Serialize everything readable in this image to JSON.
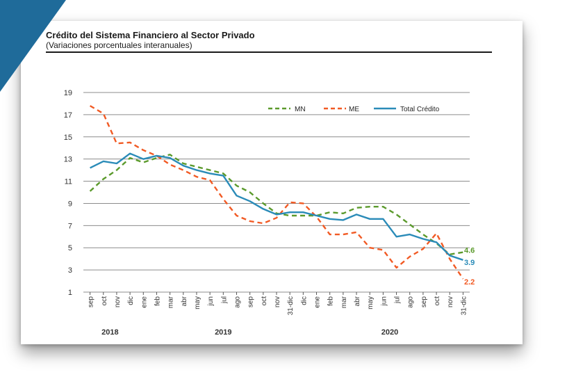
{
  "chart_data": {
    "type": "line",
    "title": "Crédito del Sistema Financiero al Sector Privado",
    "subtitle": "(Variaciones porcentuales interanuales)",
    "xlabel": "",
    "ylabel": "",
    "ylim": [
      1,
      19
    ],
    "yticks": [
      1,
      3,
      5,
      7,
      9,
      11,
      13,
      15,
      17,
      19
    ],
    "grid": true,
    "legend": "top-right",
    "categories": [
      "sep",
      "oct",
      "nov",
      "dic",
      "ene",
      "feb",
      "mar",
      "abr",
      "may",
      "jun",
      "jul",
      "ago",
      "sep",
      "oct",
      "nov",
      "31-dic",
      "dic",
      "ene",
      "feb",
      "mar",
      "abr",
      "may",
      "jun",
      "jul",
      "ago",
      "sep",
      "oct",
      "nov",
      "31-dic"
    ],
    "years": [
      {
        "label": "2018",
        "from": 0,
        "to": 3
      },
      {
        "label": "2019",
        "from": 4,
        "to": 16
      },
      {
        "label": "2020",
        "from": 17,
        "to": 28
      }
    ],
    "series": [
      {
        "name": "MN",
        "color": "#5b9a2c",
        "dash": "7,5",
        "values": [
          10.1,
          11.2,
          12.0,
          13.1,
          12.7,
          13.1,
          13.4,
          12.6,
          12.3,
          12.0,
          11.7,
          10.6,
          10.0,
          9.0,
          8.1,
          7.9,
          7.9,
          7.9,
          8.2,
          8.1,
          8.6,
          8.7,
          8.7,
          8.0,
          7.1,
          6.2,
          5.4,
          4.4,
          4.6
        ],
        "end_label": "4.6"
      },
      {
        "name": "ME",
        "color": "#f15a24",
        "dash": "7,5",
        "values": [
          17.8,
          17.1,
          14.4,
          14.5,
          13.8,
          13.3,
          12.5,
          12.0,
          11.4,
          11.1,
          9.4,
          7.9,
          7.4,
          7.2,
          7.7,
          9.1,
          9.0,
          7.8,
          6.2,
          6.2,
          6.4,
          5.0,
          4.8,
          3.2,
          4.2,
          4.9,
          6.3,
          4.0,
          2.2
        ],
        "end_label": "2.2"
      },
      {
        "name": "Total Crédito",
        "color": "#2a8bb8",
        "dash": "",
        "values": [
          12.2,
          12.8,
          12.6,
          13.5,
          13.0,
          13.3,
          13.1,
          12.4,
          12.0,
          11.7,
          11.5,
          9.7,
          9.2,
          8.5,
          8.0,
          8.2,
          8.2,
          7.9,
          7.6,
          7.5,
          8.0,
          7.6,
          7.6,
          6.0,
          6.2,
          5.8,
          5.5,
          4.3,
          3.9
        ],
        "end_label": "3.9"
      }
    ],
    "end_label_colors": {
      "MN": "#5b9a2c",
      "ME": "#f15a24",
      "Total Crédito": "#2a8bb8"
    }
  }
}
